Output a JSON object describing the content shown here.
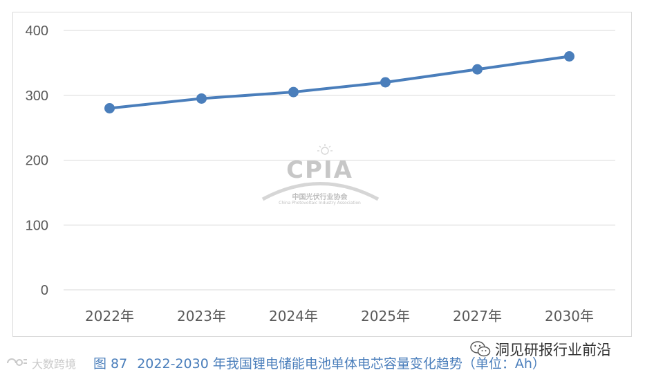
{
  "chart_data": {
    "type": "line",
    "categories": [
      "2022年",
      "2023年",
      "2024年",
      "2025年",
      "2027年",
      "2030年"
    ],
    "series": [
      {
        "values": [
          280,
          295,
          305,
          320,
          340,
          360
        ]
      }
    ],
    "ylim": [
      0,
      400
    ],
    "yticks": [
      0,
      100,
      200,
      300,
      400
    ],
    "ytick_labels": [
      "0",
      "100",
      "200",
      "300",
      "400"
    ],
    "grid": true,
    "line_color": "#4a7ebb",
    "grid_color": "#d9d9d9"
  },
  "caption": {
    "figure_number": "图 87",
    "text": "2022-2030 年我国锂电储能电池单体电芯容量变化趋势（单位：Ah）"
  },
  "watermark": {
    "cpia_logo": "CPIA",
    "cpia_cn": "中国光伏行业协会",
    "cpia_en": "China Photovoltaic Industry Association",
    "left_mark": "大数跨境",
    "wechat_account": "洞见研报行业前沿"
  },
  "icons": {
    "wechat": "wechat-icon",
    "left_watermark": "watermark-logo-icon"
  }
}
